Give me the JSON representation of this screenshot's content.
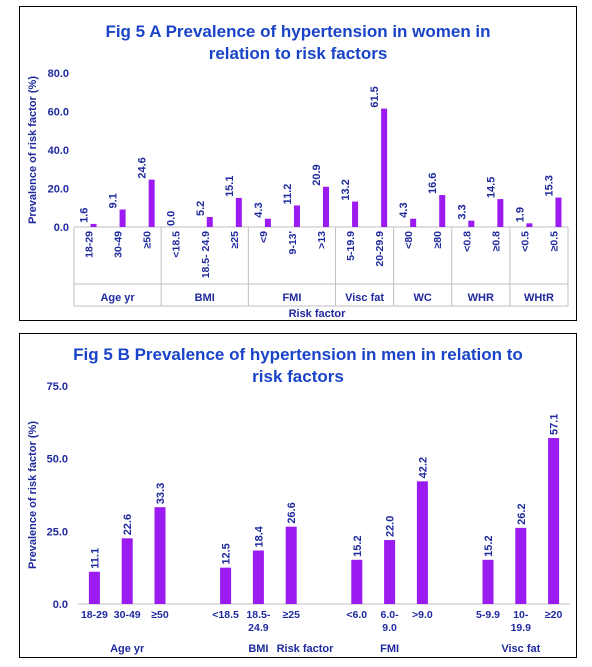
{
  "chart_data": [
    {
      "type": "bar",
      "title_lines": [
        "Fig 5 A Prevalence of hypertension in women in",
        "relation to risk factors"
      ],
      "xlabel": "Risk  factor",
      "ylabel": "Prevalence of risk factor (%)",
      "ylim": [
        0,
        80
      ],
      "yticks": [
        "0.0",
        "20.0",
        "40.0",
        "60.0",
        "80.0"
      ],
      "grid": false,
      "color": "#9b1bf0",
      "groups": [
        {
          "name": "Age yr",
          "categories": [
            "18-29",
            "30-49",
            "≥50"
          ],
          "values": [
            1.6,
            9.1,
            24.6
          ],
          "labels": [
            "1.6",
            "9.1",
            "24.6"
          ]
        },
        {
          "name": "BMI",
          "categories": [
            "<18.5",
            "18.5- 24.9",
            "≥25"
          ],
          "values": [
            0.0,
            5.2,
            15.1
          ],
          "labels": [
            "0.0",
            "5.2",
            "15.1"
          ]
        },
        {
          "name": "FMI",
          "categories": [
            "<9",
            "9-13'",
            ">13"
          ],
          "values": [
            4.3,
            11.2,
            20.9
          ],
          "labels": [
            "4.3",
            "11.2",
            "20.9"
          ]
        },
        {
          "name": "Visc fat",
          "categories": [
            "5-19.9",
            "20-29.9"
          ],
          "values": [
            13.2,
            61.5
          ],
          "labels": [
            "13.2",
            "61.5"
          ]
        },
        {
          "name": "WC",
          "categories": [
            "<80",
            "≥80"
          ],
          "values": [
            4.3,
            16.6
          ],
          "labels": [
            "4.3",
            "16.6"
          ]
        },
        {
          "name": "WHR",
          "categories": [
            "<0.8",
            "≥0.8"
          ],
          "values": [
            3.3,
            14.5
          ],
          "labels": [
            "3.3",
            "14.5"
          ]
        },
        {
          "name": "WHtR",
          "categories": [
            "<0.5",
            "≥0.5"
          ],
          "values": [
            1.9,
            15.3
          ],
          "labels": [
            "1.9",
            "15.3"
          ]
        }
      ]
    },
    {
      "type": "bar",
      "title_lines": [
        "Fig 5 B Prevalence of hypertension in men in relation to",
        "risk factors"
      ],
      "xlabel": "Risk  factor",
      "ylabel": "Prevalence of risk factor (%)",
      "ylim": [
        0,
        75
      ],
      "yticks": [
        "0.0",
        "25.0",
        "50.0",
        "75.0"
      ],
      "grid": false,
      "color": "#9b1bf0",
      "groups": [
        {
          "name": "Age yr",
          "categories": [
            "18-29",
            "30-49",
            "≥50"
          ],
          "values": [
            11.1,
            22.6,
            33.3
          ],
          "labels": [
            "11.1",
            "22.6",
            "33.3"
          ]
        },
        {
          "name": "BMI",
          "categories": [
            "<18.5",
            "18.5-|24.9",
            "≥25"
          ],
          "values": [
            12.5,
            18.4,
            26.6
          ],
          "labels": [
            "12.5",
            "18.4",
            "26.6"
          ]
        },
        {
          "name": "FMI",
          "categories": [
            "<6.0",
            "6.0-|9.0",
            ">9.0"
          ],
          "values": [
            15.2,
            22.0,
            42.2
          ],
          "labels": [
            "15.2",
            "22.0",
            "42.2"
          ]
        },
        {
          "name": "Visc fat",
          "categories": [
            "5-9.9",
            "10-|19.9",
            "≥20"
          ],
          "values": [
            15.2,
            26.2,
            57.1
          ],
          "labels": [
            "15.2",
            "26.2",
            "57.1"
          ]
        }
      ]
    }
  ]
}
